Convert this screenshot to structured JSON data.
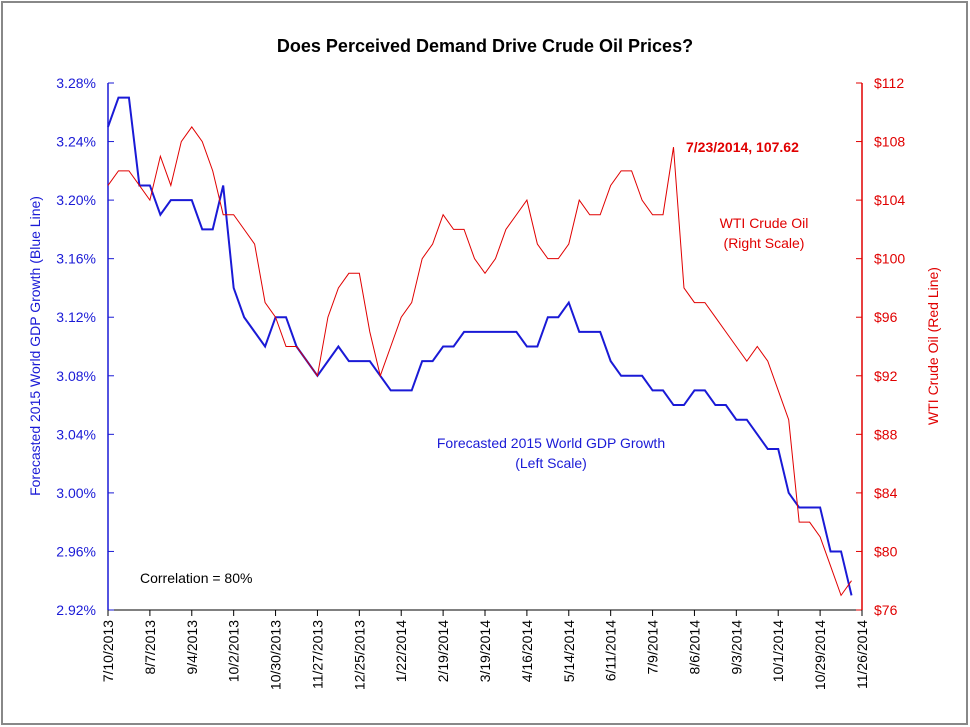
{
  "chart_data": {
    "type": "line",
    "title": "Does Perceived Demand Drive Crude Oil Prices?",
    "y_label": "Forecasted 2015 World GDP Growth (Blue Line)",
    "y2_label": "WTI Crude Oil (Red Line)",
    "annotations": [
      "7/23/2014, 107.62",
      "WTI Crude Oil",
      "(Right Scale)",
      "Forecasted 2015 World GDP Growth",
      "(Left Scale)",
      "Correlation =  80%"
    ],
    "x": [
      "7/10/2013",
      "7/17/2013",
      "7/24/2013",
      "7/31/2013",
      "8/7/2013",
      "8/14/2013",
      "8/21/2013",
      "8/28/2013",
      "9/4/2013",
      "9/11/2013",
      "9/18/2013",
      "9/25/2013",
      "10/2/2013",
      "10/9/2013",
      "10/16/2013",
      "10/23/2013",
      "10/30/2013",
      "11/6/2013",
      "11/13/2013",
      "11/20/2013",
      "11/27/2013",
      "12/4/2013",
      "12/11/2013",
      "12/18/2013",
      "12/25/2013",
      "1/1/2014",
      "1/8/2014",
      "1/15/2014",
      "1/22/2014",
      "1/29/2014",
      "2/5/2014",
      "2/12/2014",
      "2/19/2014",
      "2/26/2014",
      "3/5/2014",
      "3/12/2014",
      "3/19/2014",
      "3/26/2014",
      "4/2/2014",
      "4/9/2014",
      "4/16/2014",
      "4/23/2014",
      "4/30/2014",
      "5/7/2014",
      "5/14/2014",
      "5/21/2014",
      "5/28/2014",
      "6/4/2014",
      "6/11/2014",
      "6/18/2014",
      "6/25/2014",
      "7/2/2014",
      "7/9/2014",
      "7/16/2014",
      "7/23/2014",
      "7/30/2014",
      "8/6/2014",
      "8/13/2014",
      "8/20/2014",
      "8/27/2014",
      "9/3/2014",
      "9/10/2014",
      "9/17/2014",
      "9/24/2014",
      "10/1/2014",
      "10/8/2014",
      "10/15/2014",
      "10/22/2014",
      "10/29/2014",
      "11/5/2014",
      "11/12/2014",
      "11/19/2014"
    ],
    "series": [
      {
        "name": "Forecasted 2015 World GDP Growth",
        "color": "#1a1ad6",
        "axis": "y",
        "values": [
          3.25,
          3.27,
          3.27,
          3.21,
          3.21,
          3.19,
          3.2,
          3.2,
          3.2,
          3.18,
          3.18,
          3.21,
          3.14,
          3.12,
          3.11,
          3.1,
          3.12,
          3.12,
          3.1,
          3.09,
          3.08,
          3.09,
          3.1,
          3.09,
          3.09,
          3.09,
          3.08,
          3.07,
          3.07,
          3.07,
          3.09,
          3.09,
          3.1,
          3.1,
          3.11,
          3.11,
          3.11,
          3.11,
          3.11,
          3.11,
          3.1,
          3.1,
          3.12,
          3.12,
          3.13,
          3.11,
          3.11,
          3.11,
          3.09,
          3.08,
          3.08,
          3.08,
          3.07,
          3.07,
          3.06,
          3.06,
          3.07,
          3.07,
          3.06,
          3.06,
          3.05,
          3.05,
          3.04,
          3.03,
          3.03,
          3.0,
          2.99,
          2.99,
          2.99,
          2.96,
          2.96,
          2.93
        ]
      },
      {
        "name": "WTI Crude Oil",
        "color": "#e00000",
        "axis": "y2",
        "values": [
          105,
          106,
          106,
          105,
          104,
          107,
          105,
          108,
          109,
          108,
          106,
          103,
          103,
          102,
          101,
          97,
          96,
          94,
          94,
          93,
          92,
          96,
          98,
          99,
          99,
          95,
          92,
          94,
          96,
          97,
          100,
          101,
          103,
          102,
          102,
          100,
          99,
          100,
          102,
          103,
          104,
          101,
          100,
          100,
          101,
          104,
          103,
          103,
          105,
          106,
          106,
          104,
          103,
          103,
          107.62,
          98,
          97,
          97,
          96,
          95,
          94,
          93,
          94,
          93,
          91,
          89,
          82,
          82,
          81,
          79,
          77,
          78
        ]
      }
    ],
    "xlim": [
      "7/10/2013",
      "11/26/2014"
    ],
    "xticks": [
      "7/10/2013",
      "8/7/2013",
      "9/4/2013",
      "10/2/2013",
      "10/30/2013",
      "11/27/2013",
      "12/25/2013",
      "1/22/2014",
      "2/19/2014",
      "3/19/2014",
      "4/16/2014",
      "5/14/2014",
      "6/11/2014",
      "7/9/2014",
      "8/6/2014",
      "9/3/2014",
      "10/1/2014",
      "10/29/2014",
      "11/26/2014"
    ],
    "ylim": [
      2.92,
      3.28
    ],
    "yticks": [
      {
        "value": 2.92,
        "label": "2.92%"
      },
      {
        "value": 2.96,
        "label": "2.96%"
      },
      {
        "value": 3.0,
        "label": "3.00%"
      },
      {
        "value": 3.04,
        "label": "3.04%"
      },
      {
        "value": 3.08,
        "label": "3.08%"
      },
      {
        "value": 3.12,
        "label": "3.12%"
      },
      {
        "value": 3.16,
        "label": "3.16%"
      },
      {
        "value": 3.2,
        "label": "3.20%"
      },
      {
        "value": 3.24,
        "label": "3.24%"
      },
      {
        "value": 3.28,
        "label": "3.28%"
      }
    ],
    "y2lim": [
      76,
      112
    ],
    "y2ticks": [
      {
        "value": 76,
        "label": "$76"
      },
      {
        "value": 80,
        "label": "$80"
      },
      {
        "value": 84,
        "label": "$84"
      },
      {
        "value": 88,
        "label": "$88"
      },
      {
        "value": 92,
        "label": "$92"
      },
      {
        "value": 96,
        "label": "$96"
      },
      {
        "value": 100,
        "label": "$100"
      },
      {
        "value": 104,
        "label": "$104"
      },
      {
        "value": 108,
        "label": "$108"
      },
      {
        "value": 112,
        "label": "$112"
      }
    ]
  }
}
